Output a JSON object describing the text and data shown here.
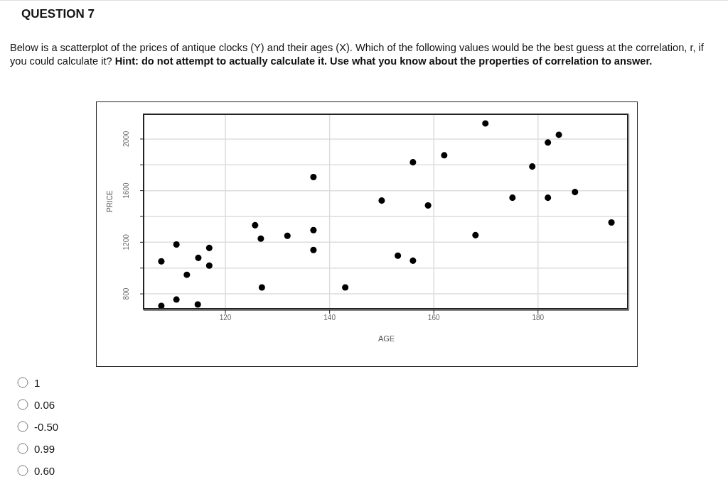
{
  "chart_data": {
    "type": "scatter",
    "title": "QUESTION 7",
    "subtitle": "Below is a scatterplot of the prices of antique clocks (Y) and their ages (X). Which of the following values would be the best guess at the correlation, r, if you could calculate it?",
    "annotations": [
      "Hint: do not attempt to actually calculate it. Use what you know about the properties of correlation to answer.",
      "1",
      "0.06",
      "-0.50",
      "0.99",
      "0.60"
    ],
    "xlabel": "AGE",
    "ylabel": "PRICE",
    "x": [
      107.7,
      110.6,
      112.6,
      114.8,
      116.9,
      116.9,
      107.7,
      110.6,
      114.7,
      125.7,
      126.8,
      127,
      131.9,
      136.9,
      136.9,
      136.9,
      143,
      150,
      153.1,
      156,
      156,
      158.9,
      162,
      168,
      169.9,
      175.1,
      178.9,
      181.9,
      181.9,
      184,
      187.1,
      194.1
    ],
    "values": [
      1052,
      1183,
      948,
      1079,
      1156,
      1019,
      707,
      756,
      718,
      1332,
      1228,
      850,
      1250,
      1705,
      1294,
      1140,
      850,
      1523,
      1096,
      1820,
      1057,
      1485,
      1874,
      1255,
      2121,
      1545,
      1787,
      1973,
      1545,
      2033,
      1589,
      1353
    ],
    "color": "#000000",
    "marker": "circle",
    "xlim": [
      104.3,
      197.5
    ],
    "xticks": [
      120,
      140,
      160,
      180
    ],
    "ylim": [
      674,
      2192
    ],
    "yticks": [
      800,
      {
        "value": 1000,
        "label": null
      },
      1200,
      {
        "value": 1400,
        "label": null
      },
      1600,
      {
        "value": 1800,
        "label": null
      },
      2000
    ],
    "grid": true
  }
}
